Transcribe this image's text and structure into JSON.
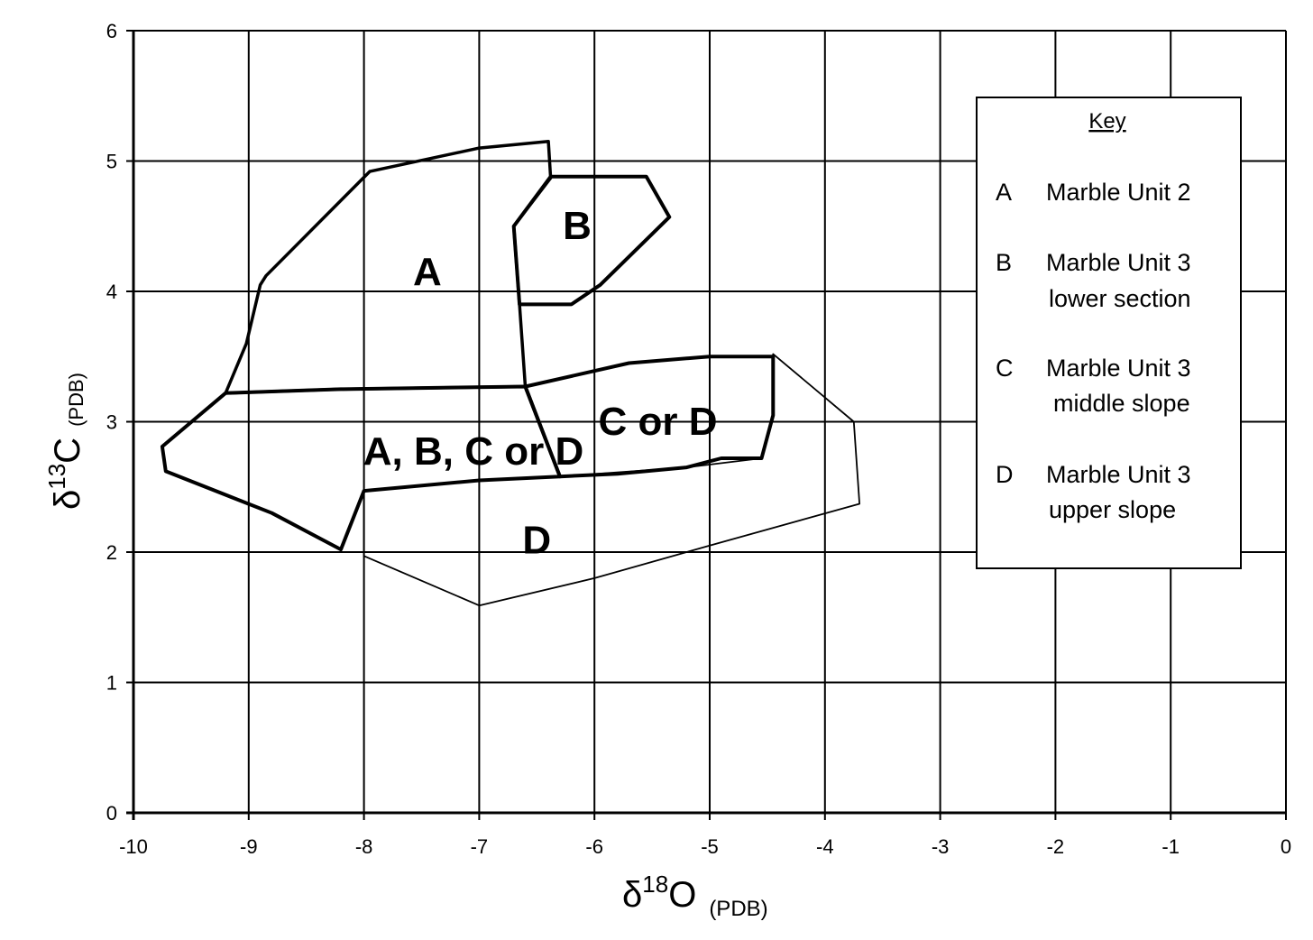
{
  "chart_data": {
    "type": "scatter",
    "xlabel_main": "δ",
    "xlabel_sup": "18",
    "xlabel_sym": "O",
    "xlabel_unit": "(PDB)",
    "ylabel_main": "δ",
    "ylabel_sup": "13",
    "ylabel_sym": "C",
    "ylabel_unit": "(PDB)",
    "xlim": [
      -10,
      0
    ],
    "ylim": [
      0,
      6
    ],
    "x_ticks": [
      "-10",
      "-9",
      "-8",
      "-7",
      "-6",
      "-5",
      "-4",
      "-3",
      "-2",
      "-1",
      "0"
    ],
    "y_ticks": [
      "0",
      "1",
      "2",
      "3",
      "4",
      "5",
      "6"
    ],
    "grid": true,
    "region_labels": [
      {
        "text": "A",
        "x": -7.45,
        "y": 4.05
      },
      {
        "text": "B",
        "x": -6.15,
        "y": 4.4
      },
      {
        "text": "A, B, C or D",
        "x": -7.05,
        "y": 2.67
      },
      {
        "text": "C or D",
        "x": -5.45,
        "y": 2.9
      },
      {
        "text": "D",
        "x": -6.5,
        "y": 1.99
      }
    ],
    "series": [
      {
        "id": "A",
        "points": [
          [
            -9.2,
            3.22
          ],
          [
            -9.02,
            3.6
          ],
          [
            -8.9,
            4.05
          ],
          [
            -8.85,
            4.12
          ],
          [
            -7.95,
            4.92
          ],
          [
            -7.0,
            5.1
          ],
          [
            -6.4,
            5.15
          ],
          [
            -6.38,
            4.87
          ],
          [
            -6.7,
            4.5
          ],
          [
            -6.65,
            3.9
          ],
          [
            -6.6,
            3.27
          ],
          [
            -8.2,
            3.25
          ],
          [
            -9.2,
            3.22
          ]
        ],
        "weight": "mixed"
      },
      {
        "id": "B",
        "points": [
          [
            -6.38,
            4.88
          ],
          [
            -5.55,
            4.88
          ],
          [
            -5.35,
            4.57
          ],
          [
            -5.95,
            4.05
          ],
          [
            -6.2,
            3.9
          ],
          [
            -6.65,
            3.9
          ],
          [
            -6.7,
            4.5
          ],
          [
            -6.38,
            4.88
          ]
        ],
        "weight": "heavy"
      },
      {
        "id": "CD",
        "points": [
          [
            -6.6,
            3.27
          ],
          [
            -5.7,
            3.45
          ],
          [
            -5.0,
            3.5
          ],
          [
            -4.45,
            3.5
          ],
          [
            -4.45,
            3.05
          ],
          [
            -4.55,
            2.72
          ],
          [
            -4.9,
            2.72
          ],
          [
            -5.2,
            2.65
          ],
          [
            -5.8,
            2.6
          ],
          [
            -6.3,
            2.58
          ],
          [
            -6.6,
            3.27
          ]
        ],
        "weight": "heavy"
      },
      {
        "id": "ABCD",
        "points": [
          [
            -9.2,
            3.22
          ],
          [
            -9.75,
            2.81
          ],
          [
            -9.72,
            2.62
          ],
          [
            -8.8,
            2.3
          ],
          [
            -8.2,
            2.02
          ],
          [
            -8.0,
            2.47
          ],
          [
            -7.0,
            2.55
          ],
          [
            -6.3,
            2.58
          ],
          [
            -6.6,
            3.27
          ],
          [
            -8.2,
            3.25
          ],
          [
            -9.2,
            3.22
          ]
        ],
        "weight": "heavy"
      },
      {
        "id": "D",
        "points": [
          [
            -8.2,
            2.02
          ],
          [
            -8.0,
            2.47
          ],
          [
            -8.0,
            1.97
          ],
          [
            -7.0,
            1.59
          ],
          [
            -6.0,
            1.8
          ],
          [
            -5.0,
            2.05
          ],
          [
            -3.7,
            2.37
          ],
          [
            -3.75,
            3.0
          ],
          [
            -4.45,
            3.52
          ],
          [
            -4.45,
            3.05
          ],
          [
            -4.55,
            2.72
          ],
          [
            -5.2,
            2.65
          ],
          [
            -6.3,
            2.58
          ],
          [
            -7.0,
            2.55
          ],
          [
            -8.0,
            2.47
          ]
        ],
        "weight": "thin"
      }
    ]
  },
  "legend": {
    "title": "Key",
    "entries": [
      {
        "letter": "A",
        "line1": "Marble Unit 2",
        "line2": ""
      },
      {
        "letter": "B",
        "line1": "Marble Unit 3",
        "line2": "lower section"
      },
      {
        "letter": "C",
        "line1": "Marble Unit 3",
        "line2": "middle slope"
      },
      {
        "letter": "D",
        "line1": "Marble Unit 3",
        "line2": "upper slope"
      }
    ]
  }
}
